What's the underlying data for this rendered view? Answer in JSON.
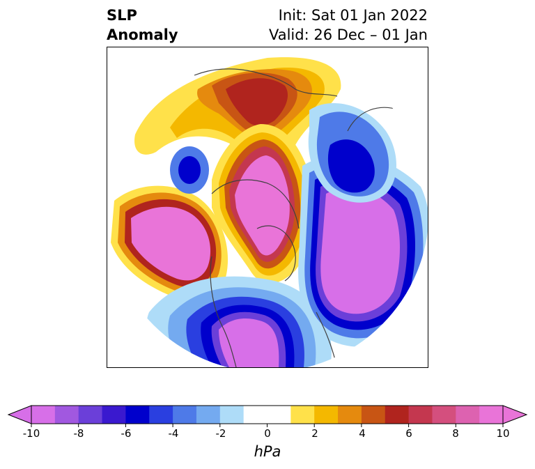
{
  "header": {
    "variable_line1": "SLP",
    "variable_line2": "Anomaly",
    "init": "Init: Sat 01 Jan 2022",
    "valid": "Valid: 26 Dec – 01 Jan"
  },
  "colorbar": {
    "unit": "hPa",
    "min": -10,
    "max": 10,
    "ticks": [
      "-10",
      "-8",
      "-6",
      "-4",
      "-2",
      "0",
      "2",
      "4",
      "6",
      "8",
      "10"
    ],
    "bins": [
      {
        "from": -10,
        "to": -9,
        "color": "#d76fe8"
      },
      {
        "from": -9,
        "to": -8,
        "color": "#a158e0"
      },
      {
        "from": -8,
        "to": -7,
        "color": "#6b3fd9"
      },
      {
        "from": -7,
        "to": -6,
        "color": "#3a19cf"
      },
      {
        "from": -6,
        "to": -5,
        "color": "#0000cc"
      },
      {
        "from": -5,
        "to": -4,
        "color": "#2a3fe0"
      },
      {
        "from": -4,
        "to": -3,
        "color": "#4e7ae8"
      },
      {
        "from": -3,
        "to": -2,
        "color": "#74aaf0"
      },
      {
        "from": -2,
        "to": -1,
        "color": "#aedcf8"
      },
      {
        "from": -1,
        "to": 1,
        "color": "#ffffff"
      },
      {
        "from": 1,
        "to": 2,
        "color": "#ffe14a"
      },
      {
        "from": 2,
        "to": 3,
        "color": "#f4b800"
      },
      {
        "from": 3,
        "to": 4,
        "color": "#e58a0e"
      },
      {
        "from": 4,
        "to": 5,
        "color": "#c85514"
      },
      {
        "from": 5,
        "to": 6,
        "color": "#b0241e"
      },
      {
        "from": 6,
        "to": 7,
        "color": "#c4374f"
      },
      {
        "from": 7,
        "to": 8,
        "color": "#d44f7e"
      },
      {
        "from": 8,
        "to": 9,
        "color": "#dd62b0"
      },
      {
        "from": 9,
        "to": 10,
        "color": "#e974d8"
      }
    ],
    "under_color": "#d76fe8",
    "over_color": "#e974d8"
  },
  "map": {
    "projection": "north polar stereographic",
    "coastline_color": "#404040",
    "features": [
      {
        "name": "north-america-low",
        "level": -10
      },
      {
        "name": "north-pacific-high",
        "level": 10
      },
      {
        "name": "arctic-high",
        "level": 10
      },
      {
        "name": "north-atlantic-low",
        "level": -10
      },
      {
        "name": "europe-high",
        "level": 6
      },
      {
        "name": "siberia-low",
        "level": -7
      }
    ]
  }
}
